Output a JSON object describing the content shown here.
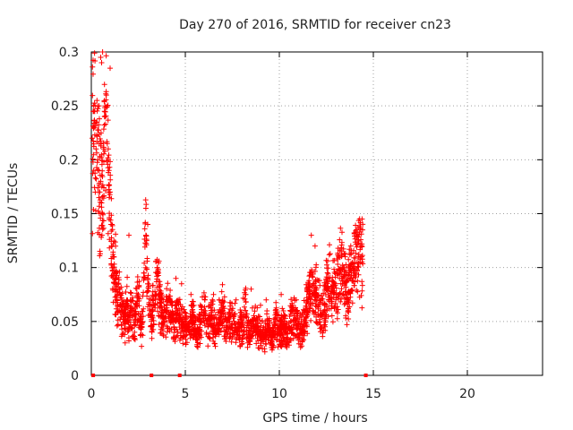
{
  "chart_data": {
    "type": "scatter",
    "title": "Day 270 of 2016, SRMTID for receiver cn23",
    "xlabel": "GPS time / hours",
    "ylabel": "SRMTID / TECUs",
    "xlim": [
      0,
      24
    ],
    "ylim": [
      0,
      0.3
    ],
    "xticks": [
      0,
      5,
      10,
      15,
      20
    ],
    "xtick_labels": [
      "0",
      "5",
      "10",
      "15",
      "20"
    ],
    "yticks": [
      0,
      0.05,
      0.1,
      0.15,
      0.2,
      0.25,
      0.3
    ],
    "ytick_labels": [
      "0",
      "0.05",
      "0.1",
      "0.15",
      "0.2",
      "0.25",
      "0.3"
    ],
    "grid": true,
    "marker": "+",
    "color": "#ff0000",
    "zero_markers_x": [
      0.1,
      3.2,
      4.7,
      14.6
    ],
    "series": [
      {
        "name": "SRMTID",
        "x": [
          0.05,
          0.1,
          0.15,
          0.2,
          0.25,
          0.3,
          0.35,
          0.4,
          0.45,
          0.5,
          0.55,
          0.6,
          0.65,
          0.7,
          0.75,
          0.8,
          0.85,
          0.9,
          0.95,
          1.0,
          1.05,
          1.1,
          1.15,
          1.2,
          1.25,
          1.3,
          1.35,
          1.4,
          1.5,
          1.6,
          1.7,
          1.8,
          1.9,
          2.0,
          2.1,
          2.2,
          2.3,
          2.4,
          2.5,
          2.6,
          2.7,
          2.8,
          2.9,
          3.0,
          3.1,
          3.2,
          3.3,
          3.4,
          3.5,
          3.6,
          3.7,
          3.8,
          3.9,
          4.0,
          4.2,
          4.4,
          4.6,
          4.8,
          5.0,
          5.2,
          5.4,
          5.6,
          5.8,
          6.0,
          6.2,
          6.4,
          6.6,
          6.8,
          7.0,
          7.2,
          7.4,
          7.6,
          7.8,
          8.0,
          8.2,
          8.4,
          8.6,
          8.8,
          9.0,
          9.2,
          9.4,
          9.6,
          9.8,
          10.0,
          10.2,
          10.4,
          10.6,
          10.8,
          11.0,
          11.2,
          11.4,
          11.6,
          11.8,
          12.0,
          12.2,
          12.4,
          12.6,
          12.8,
          13.0,
          13.2,
          13.4,
          13.6,
          13.8,
          14.0,
          14.2,
          14.4,
          0.3,
          0.5,
          0.7,
          0.9,
          1.1,
          2.9,
          3.0,
          4.8,
          6.5,
          8.2,
          9.0,
          11.7,
          11.9,
          13.5,
          13.8,
          14.1,
          14.4,
          0.55,
          0.6,
          1.0,
          2.0,
          3.5,
          4.5,
          5.3,
          6.8,
          7.7,
          8.5,
          9.3,
          10.1,
          10.9,
          11.6,
          12.5,
          13.2,
          14.0
        ],
        "y": [
          0.22,
          0.245,
          0.23,
          0.25,
          0.21,
          0.235,
          0.2,
          0.19,
          0.17,
          0.18,
          0.16,
          0.15,
          0.21,
          0.245,
          0.25,
          0.26,
          0.215,
          0.2,
          0.165,
          0.17,
          0.14,
          0.12,
          0.1,
          0.11,
          0.085,
          0.095,
          0.07,
          0.065,
          0.08,
          0.06,
          0.055,
          0.05,
          0.07,
          0.045,
          0.06,
          0.055,
          0.04,
          0.065,
          0.075,
          0.05,
          0.045,
          0.09,
          0.13,
          0.085,
          0.06,
          0.05,
          0.065,
          0.07,
          0.1,
          0.075,
          0.055,
          0.06,
          0.05,
          0.065,
          0.055,
          0.045,
          0.06,
          0.05,
          0.045,
          0.04,
          0.055,
          0.035,
          0.05,
          0.06,
          0.045,
          0.055,
          0.04,
          0.05,
          0.06,
          0.045,
          0.055,
          0.05,
          0.04,
          0.045,
          0.06,
          0.035,
          0.05,
          0.045,
          0.04,
          0.035,
          0.045,
          0.03,
          0.05,
          0.04,
          0.045,
          0.035,
          0.05,
          0.055,
          0.045,
          0.04,
          0.06,
          0.075,
          0.085,
          0.07,
          0.06,
          0.065,
          0.09,
          0.08,
          0.085,
          0.095,
          0.1,
          0.075,
          0.09,
          0.1,
          0.11,
          0.105,
          0.255,
          0.295,
          0.24,
          0.21,
          0.14,
          0.155,
          0.14,
          0.085,
          0.075,
          0.075,
          0.065,
          0.13,
          0.12,
          0.11,
          0.12,
          0.135,
          0.145,
          0.29,
          0.3,
          0.285,
          0.13,
          0.1,
          0.09,
          0.075,
          0.07,
          0.07,
          0.08,
          0.07,
          0.075,
          0.07,
          0.085,
          0.08,
          0.09,
          0.095
        ],
        "point_count_estimate": 2500
      }
    ]
  }
}
